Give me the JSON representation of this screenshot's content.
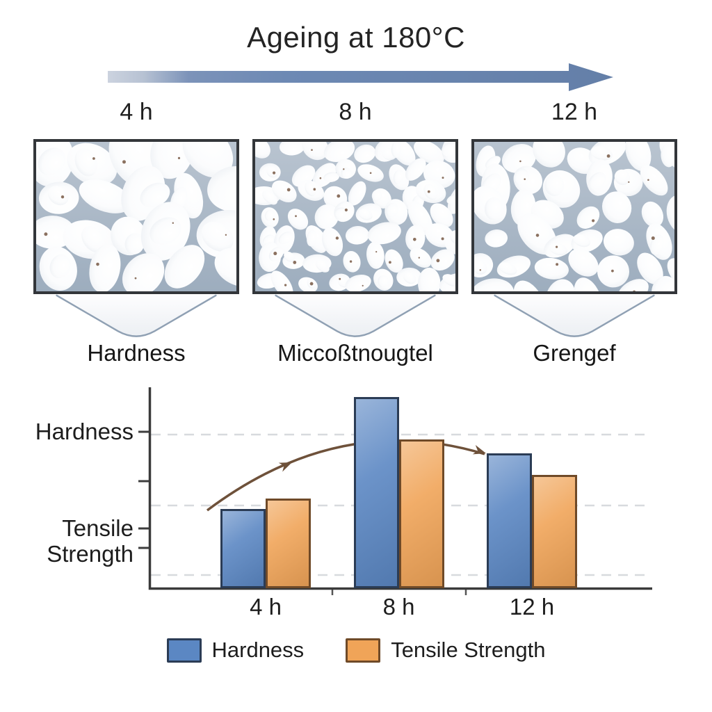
{
  "title": "Ageing at 180°C",
  "timeline": {
    "labels": [
      "4 h",
      "8 h",
      "12 h"
    ],
    "arrow_color_start": "#ccd3df",
    "arrow_color_end": "#64809f"
  },
  "micrographs": [
    {
      "time": "4 h",
      "caption": "Hardness",
      "grain": "coarse"
    },
    {
      "time": "8 h",
      "caption": "Miccoßtnougtel",
      "grain": "fine"
    },
    {
      "time": "12 h",
      "caption": "Grengef",
      "grain": "medium"
    }
  ],
  "panel_colors": {
    "background": "#a9b7c6",
    "grain": "#f4f6f9",
    "speck": "#6e4e38"
  },
  "chart_data": {
    "type": "bar",
    "categories": [
      "4 h",
      "8 h",
      "12 h"
    ],
    "series": [
      {
        "name": "Hardness",
        "color_fill": "#5b87c3",
        "color_border": "#2b3c55",
        "values": [
          40,
          96,
          68
        ]
      },
      {
        "name": "Tensile Strength",
        "color_fill": "#f0a458",
        "color_border": "#6f4a28",
        "values": [
          45,
          75,
          57
        ]
      }
    ],
    "ylim": [
      0,
      100
    ],
    "yaxis_tick_labels": [
      "Hardness",
      "Tensile Strength"
    ],
    "xlabel": "",
    "ylabel": "",
    "grid": "horizontal-dashed",
    "legend_position": "bottom",
    "trend_arrow": "rise-then-fall",
    "trend_arrow_color": "#6e513a"
  }
}
